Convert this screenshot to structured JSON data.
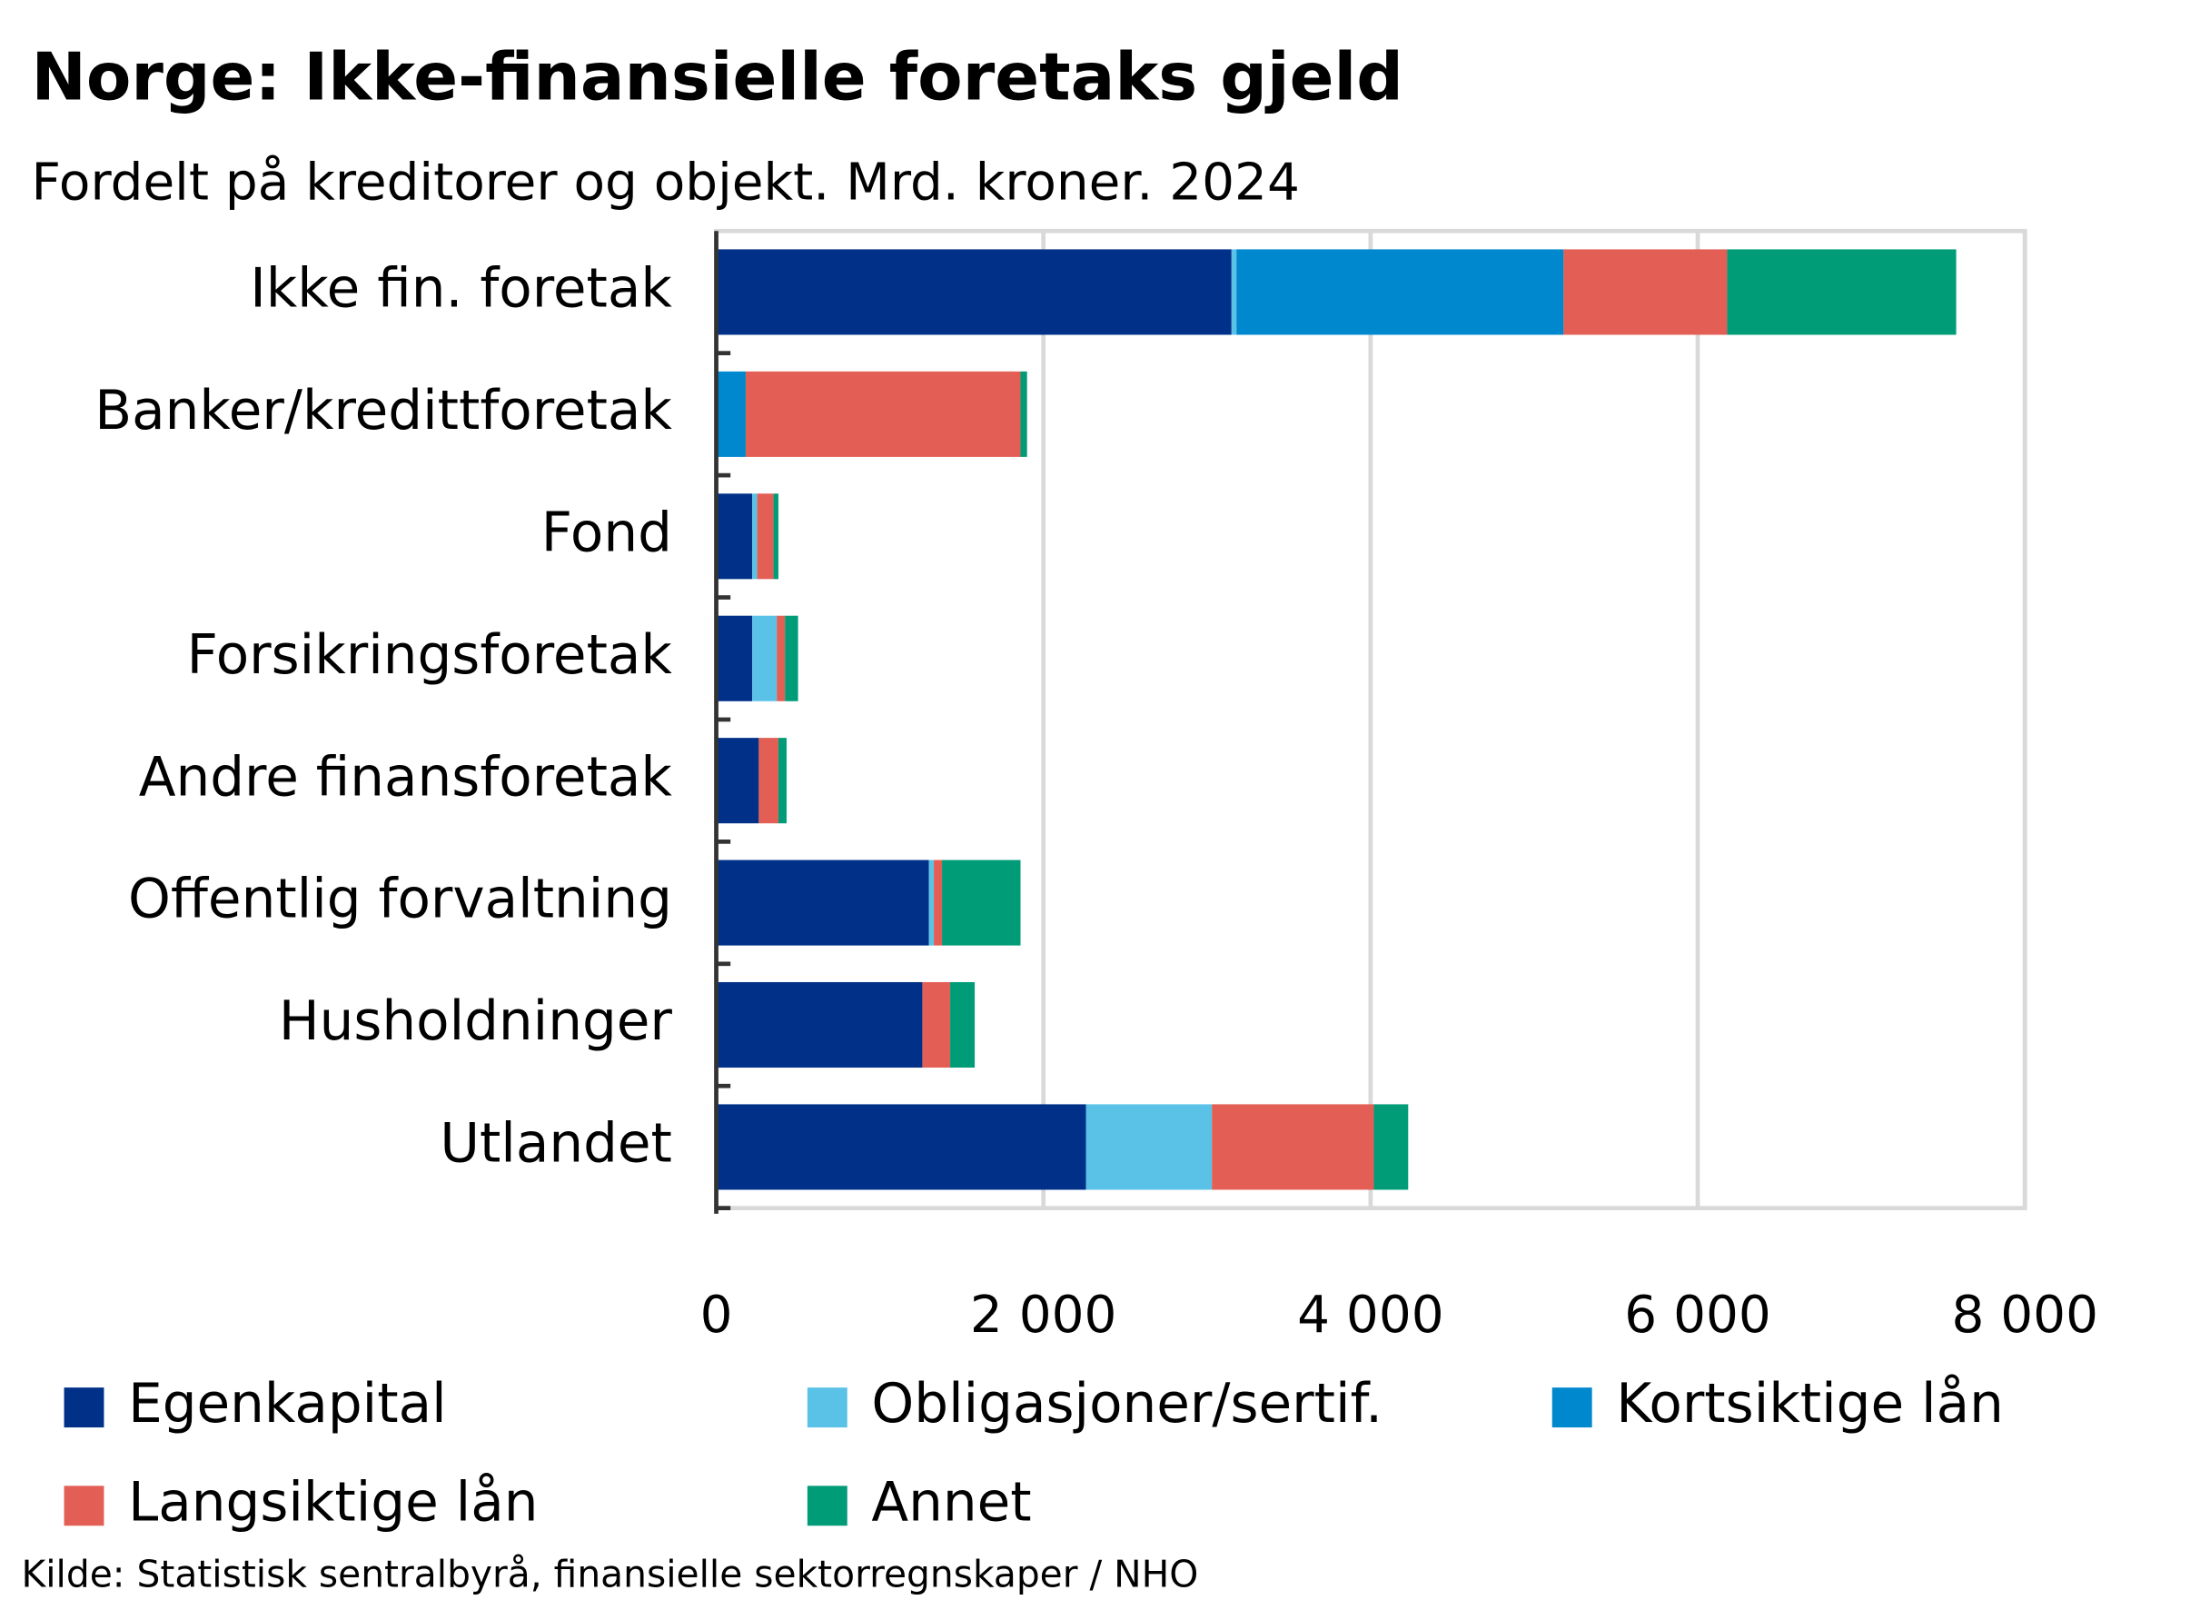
{
  "chart_data": {
    "type": "stacked_barh",
    "title": "Norge: Ikke-finansielle foretaks gjeld",
    "subtitle": "Fordelt på kreditorer og objekt. Mrd. kroner. 2024",
    "source": "Kilde: Statistisk sentralbyrå, finansielle sektorregnskaper / NHO",
    "categories": [
      "Ikke fin. foretak",
      "Banker/kredittforetak",
      "Fond",
      "Forsikringsforetak",
      "Andre finansforetak",
      "Offentlig forvaltning",
      "Husholdninger",
      "Utlandet"
    ],
    "series": [
      {
        "name": "Egenkapital",
        "color": "#003087",
        "values": [
          3150,
          0,
          220,
          220,
          260,
          1300,
          1260,
          2260
        ]
      },
      {
        "name": "Obligasjoner/sertif.",
        "color": "#5bc2e7",
        "values": [
          30,
          0,
          30,
          150,
          0,
          30,
          0,
          770
        ]
      },
      {
        "name": "Kortsiktige lån",
        "color": "#0088cf",
        "values": [
          2000,
          180,
          0,
          0,
          0,
          0,
          0,
          0
        ]
      },
      {
        "name": "Langsiktige lån",
        "color": "#e35f55",
        "values": [
          1000,
          1680,
          100,
          50,
          120,
          50,
          170,
          990
        ]
      },
      {
        "name": "Annet",
        "color": "#009c78",
        "values": [
          1400,
          40,
          30,
          80,
          50,
          480,
          150,
          210
        ]
      }
    ],
    "xlim": [
      0,
      8000
    ],
    "xticks": [
      0,
      {
        "value": 2000,
        "label": "2 000"
      },
      {
        "value": 4000,
        "label": "4 000"
      },
      {
        "value": 6000,
        "label": "6 000"
      },
      {
        "value": 8000,
        "label": "8 000"
      }
    ],
    "grid": true
  }
}
